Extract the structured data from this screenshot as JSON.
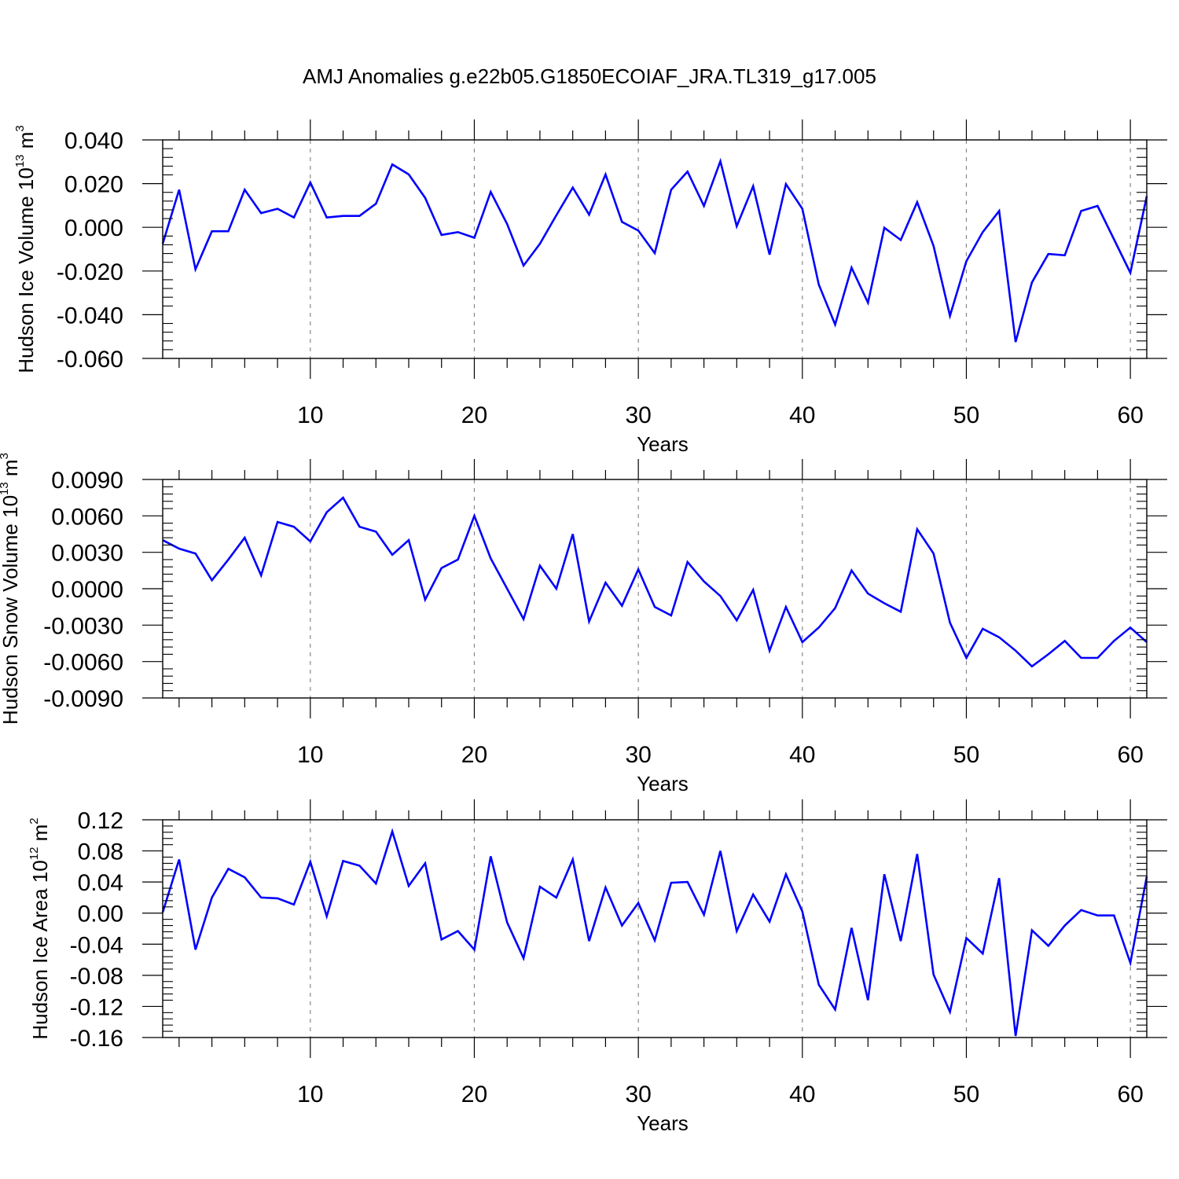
{
  "title": "AMJ Anomalies g.e22b05.G1850ECOIAF_JRA.TL319_g17.005",
  "line_color": "#0000ff",
  "chart_data": [
    {
      "type": "line",
      "ylabel_main": "Hudson Ice Volume 10",
      "ylabel_exp": "13",
      "ylabel_unit": " m",
      "ylabel_unit_exp": "3",
      "xlabel": "Years",
      "xlim": [
        1,
        61
      ],
      "ylim": [
        -0.06,
        0.04
      ],
      "xticks": [
        10,
        20,
        30,
        40,
        50,
        60
      ],
      "xtick_labels": [
        "10",
        "20",
        "30",
        "40",
        "50",
        "60"
      ],
      "yticks": [
        -0.06,
        -0.04,
        -0.02,
        0.0,
        0.02,
        0.04
      ],
      "ytick_labels": [
        "-0.060",
        "-0.040",
        "-0.020",
        "0.000",
        "0.020",
        "0.040"
      ],
      "x": [
        1,
        2,
        3,
        4,
        5,
        6,
        7,
        8,
        9,
        10,
        11,
        12,
        13,
        14,
        15,
        16,
        17,
        18,
        19,
        20,
        21,
        22,
        23,
        24,
        25,
        26,
        27,
        28,
        29,
        30,
        31,
        32,
        33,
        34,
        35,
        36,
        37,
        38,
        39,
        40,
        41,
        42,
        43,
        44,
        45,
        46,
        47,
        48,
        49,
        50,
        51,
        52,
        53,
        54,
        55,
        56,
        57,
        58,
        59,
        60,
        61
      ],
      "y": [
        -0.0075,
        0.0172,
        -0.0192,
        -0.0018,
        -0.0018,
        0.0172,
        0.0065,
        0.0085,
        0.0045,
        0.0205,
        0.0045,
        0.0052,
        0.0052,
        0.0108,
        0.0288,
        0.0242,
        0.0135,
        -0.0035,
        -0.0022,
        -0.0048,
        0.0162,
        0.0015,
        -0.0175,
        -0.0075,
        0.0055,
        0.0182,
        0.0058,
        0.0242,
        0.0025,
        -0.0015,
        -0.0118,
        0.0172,
        0.0255,
        0.0098,
        0.0302,
        0.0005,
        0.0188,
        -0.0125,
        0.0198,
        0.0085,
        -0.0262,
        -0.0445,
        -0.0185,
        -0.0345,
        -0.0002,
        -0.0058,
        0.0115,
        -0.0085,
        -0.0405,
        -0.0155,
        -0.0022,
        0.0075,
        -0.0525,
        -0.0252,
        -0.0122,
        -0.0128,
        0.0075,
        0.0098,
        -0.0055,
        -0.0208,
        0.0142
      ]
    },
    {
      "type": "line",
      "ylabel_main": "Hudson Snow Volume 10",
      "ylabel_exp": "13",
      "ylabel_unit": " m",
      "ylabel_unit_exp": "3",
      "xlabel": "Years",
      "xlim": [
        1,
        61
      ],
      "ylim": [
        -0.009,
        0.009
      ],
      "xticks": [
        10,
        20,
        30,
        40,
        50,
        60
      ],
      "xtick_labels": [
        "10",
        "20",
        "30",
        "40",
        "50",
        "60"
      ],
      "yticks": [
        -0.009,
        -0.006,
        -0.003,
        0.0,
        0.003,
        0.006,
        0.009
      ],
      "ytick_labels": [
        "-0.0090",
        "-0.0060",
        "-0.0030",
        "0.0000",
        "0.0030",
        "0.0060",
        "0.0090"
      ],
      "x": [
        1,
        2,
        3,
        4,
        5,
        6,
        7,
        8,
        9,
        10,
        11,
        12,
        13,
        14,
        15,
        16,
        17,
        18,
        19,
        20,
        21,
        22,
        23,
        24,
        25,
        26,
        27,
        28,
        29,
        30,
        31,
        32,
        33,
        34,
        35,
        36,
        37,
        38,
        39,
        40,
        41,
        42,
        43,
        44,
        45,
        46,
        47,
        48,
        49,
        50,
        51,
        52,
        53,
        54,
        55,
        56,
        57,
        58,
        59,
        60,
        61
      ],
      "y": [
        0.004,
        0.0033,
        0.0029,
        0.0007,
        0.0024,
        0.0042,
        0.0011,
        0.0055,
        0.0051,
        0.0039,
        0.0063,
        0.0075,
        0.0051,
        0.0047,
        0.0028,
        0.004,
        -0.0009,
        0.0017,
        0.0024,
        0.006,
        0.0025,
        0.0,
        -0.0025,
        0.0019,
        0.0,
        0.0045,
        -0.0027,
        0.0005,
        -0.0014,
        0.0016,
        -0.0015,
        -0.0022,
        0.0022,
        0.0006,
        -0.0006,
        -0.0026,
        -0.0001,
        -0.0051,
        -0.0015,
        -0.0044,
        -0.0032,
        -0.0016,
        0.0015,
        -0.0004,
        -0.0012,
        -0.0019,
        0.0049,
        0.0029,
        -0.0028,
        -0.0057,
        -0.0033,
        -0.004,
        -0.0051,
        -0.0064,
        -0.0054,
        -0.0043,
        -0.0057,
        -0.0057,
        -0.0043,
        -0.0032,
        -0.0044
      ]
    },
    {
      "type": "line",
      "ylabel_main": "Hudson Ice Area 10",
      "ylabel_exp": "12",
      "ylabel_unit": " m",
      "ylabel_unit_exp": "2",
      "xlabel": "Years",
      "xlim": [
        1,
        61
      ],
      "ylim": [
        -0.16,
        0.12
      ],
      "xticks": [
        10,
        20,
        30,
        40,
        50,
        60
      ],
      "xtick_labels": [
        "10",
        "20",
        "30",
        "40",
        "50",
        "60"
      ],
      "yticks": [
        -0.16,
        -0.12,
        -0.08,
        -0.04,
        0.0,
        0.04,
        0.08,
        0.12
      ],
      "ytick_labels": [
        "-0.16",
        "-0.12",
        "-0.08",
        "-0.04",
        "0.00",
        "0.04",
        "0.08",
        "0.12"
      ],
      "x": [
        1,
        2,
        3,
        4,
        5,
        6,
        7,
        8,
        9,
        10,
        11,
        12,
        13,
        14,
        15,
        16,
        17,
        18,
        19,
        20,
        21,
        22,
        23,
        24,
        25,
        26,
        27,
        28,
        29,
        30,
        31,
        32,
        33,
        34,
        35,
        36,
        37,
        38,
        39,
        40,
        41,
        42,
        43,
        44,
        45,
        46,
        47,
        48,
        49,
        50,
        51,
        52,
        53,
        54,
        55,
        56,
        57,
        58,
        59,
        60,
        61
      ],
      "y": [
        0.001,
        0.069,
        -0.047,
        0.02,
        0.057,
        0.046,
        0.02,
        0.019,
        0.011,
        0.066,
        -0.004,
        0.067,
        0.061,
        0.038,
        0.105,
        0.035,
        0.064,
        -0.034,
        -0.023,
        -0.047,
        0.073,
        -0.012,
        -0.058,
        0.034,
        0.02,
        0.069,
        -0.036,
        0.033,
        -0.016,
        0.013,
        -0.035,
        0.039,
        0.04,
        -0.002,
        0.08,
        -0.023,
        0.024,
        -0.011,
        0.05,
        0.002,
        -0.092,
        -0.124,
        -0.019,
        -0.112,
        0.05,
        -0.036,
        0.076,
        -0.079,
        -0.127,
        -0.032,
        -0.052,
        0.045,
        -0.158,
        -0.022,
        -0.042,
        -0.016,
        0.004,
        -0.003,
        -0.003,
        -0.064,
        0.047
      ]
    }
  ]
}
